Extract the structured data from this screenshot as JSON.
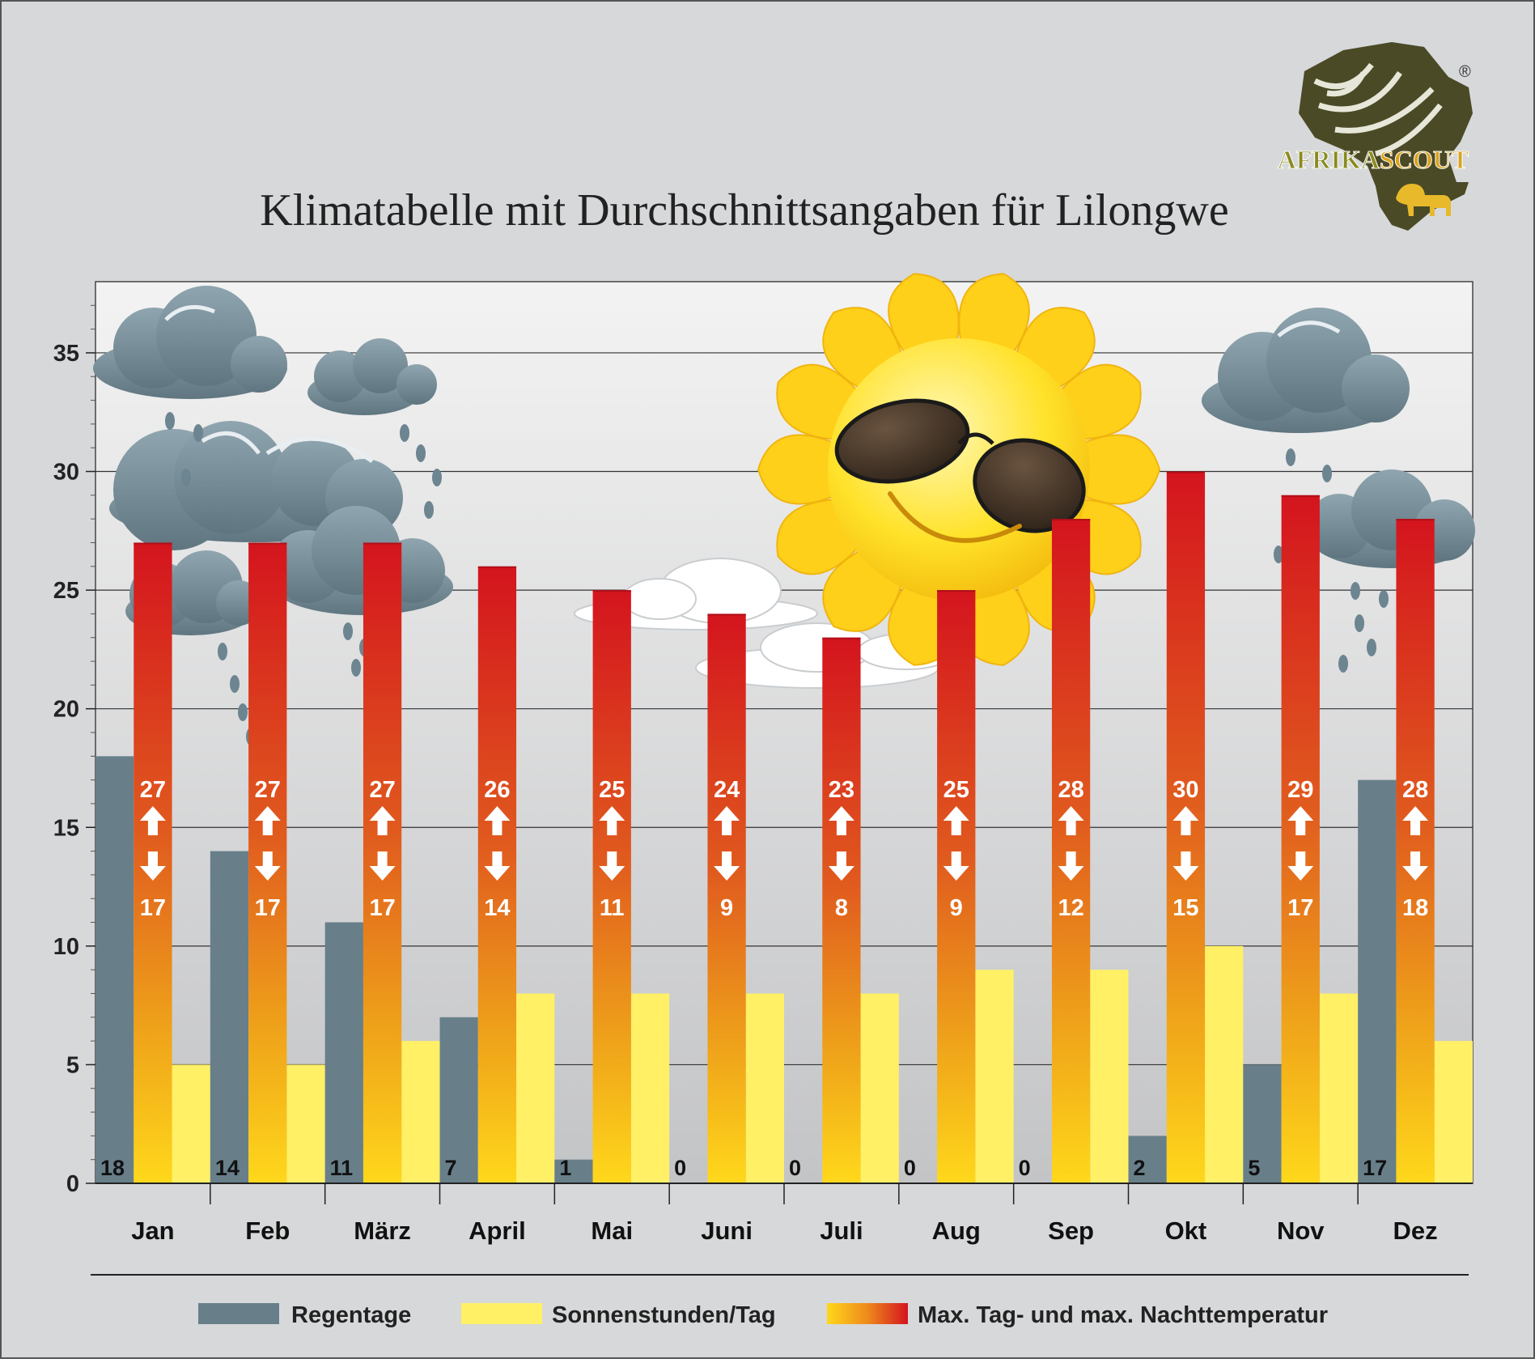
{
  "chart_data": {
    "type": "bar",
    "title": "Klimatabelle mit Durchschnittsangaben für Lilongwe",
    "categories": [
      "Jan",
      "Feb",
      "März",
      "April",
      "Mai",
      "Juni",
      "Juli",
      "Aug",
      "Sep",
      "Okt",
      "Nov",
      "Dez"
    ],
    "ylim": [
      0,
      38
    ],
    "yticks": [
      "0",
      "5",
      "10",
      "15",
      "20",
      "25",
      "30",
      "35"
    ],
    "grid": true,
    "legend_position": "bottom",
    "series": [
      {
        "name": "Regentage",
        "values": [
          18,
          14,
          11,
          7,
          1,
          0,
          0,
          0,
          0,
          2,
          5,
          17
        ],
        "color": "#687f8a"
      },
      {
        "name": "Sonnenstunden/Tag",
        "values": [
          5,
          5,
          6,
          8,
          8,
          8,
          8,
          9,
          9,
          10,
          8,
          6
        ],
        "color": "#fff066"
      },
      {
        "name": "Max. Tag- und max. Nachttemperatur",
        "values": [
          27,
          27,
          27,
          26,
          25,
          24,
          23,
          25,
          28,
          30,
          29,
          28
        ],
        "color": "#d4141e"
      }
    ],
    "night_temperatures": [
      17,
      17,
      17,
      14,
      11,
      9,
      8,
      9,
      12,
      15,
      17,
      18
    ]
  },
  "logo": {
    "brand_part1": "AFRIKA",
    "brand_part2": "SCOUT",
    "registered_mark": "®"
  },
  "colors": {
    "background": "#d7d8da",
    "plot_top": "#f3f3f3",
    "plot_bottom": "#c3c4c6",
    "rain": "#687f8a",
    "sun": "#fff066",
    "temp_top": "#d4141e",
    "temp_bottom": "#ffd81b"
  },
  "icons": [
    "rain-cloud-icon",
    "sun-with-sunglasses-icon",
    "white-cloud-icon",
    "africa-map-logo-icon",
    "lion-icon"
  ]
}
